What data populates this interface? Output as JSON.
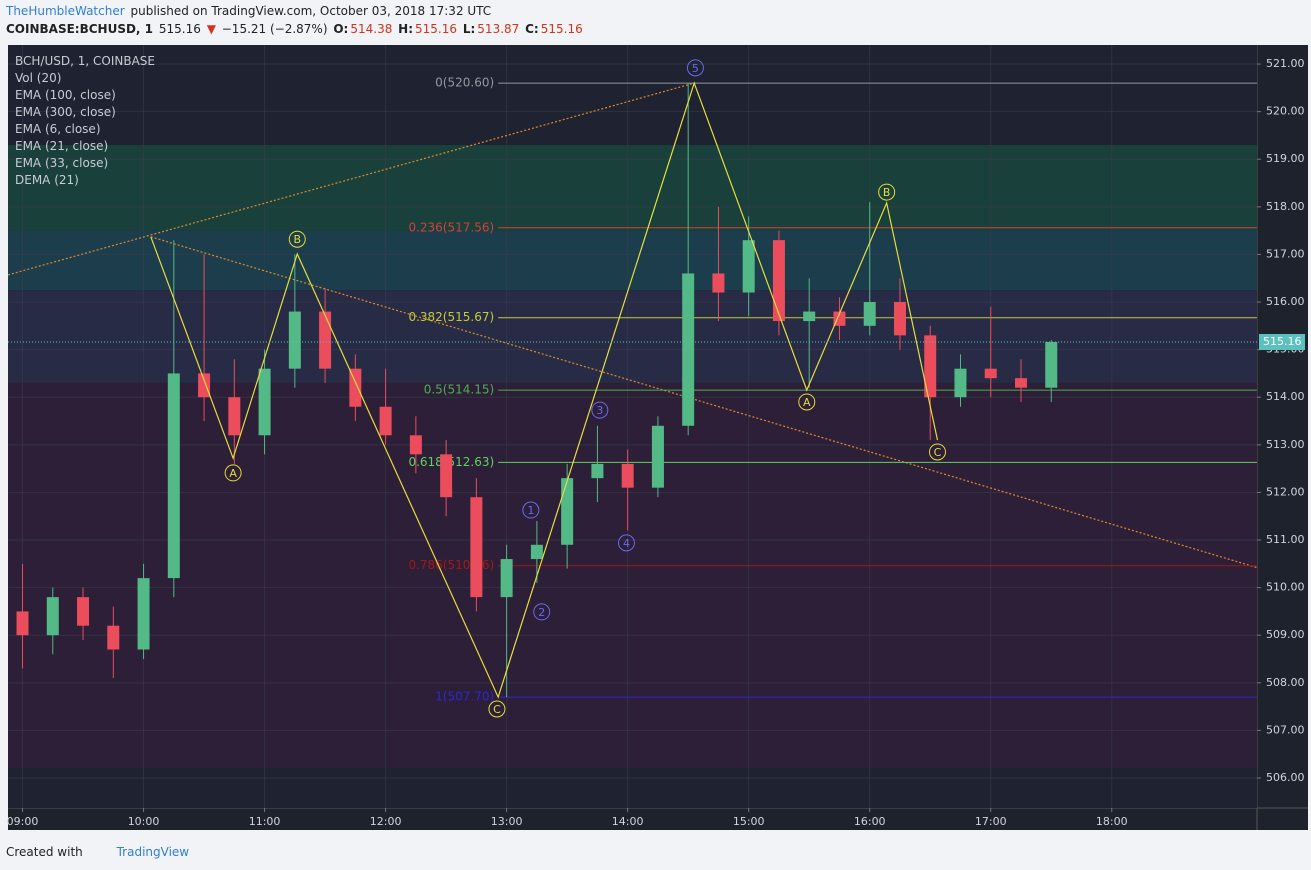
{
  "header": {
    "author": "TheHumbleWatcher",
    "published": "published on TradingView.com, October 03, 2018 17:32 UTC",
    "symbol": "COINBASE:BCHUSD, 1",
    "price": "515.16",
    "arrow": "▼",
    "change": "−15.21 (−2.87%)",
    "o_label": "O:",
    "o": "514.38",
    "h_label": "H:",
    "h": "515.16",
    "l_label": "L:",
    "l": "513.87",
    "c_label": "C:",
    "c": "515.16"
  },
  "legend": [
    "BCH/USD, 1, COINBASE",
    "Vol (20)",
    "EMA (100, close)",
    "EMA (300, close)",
    "EMA (6, close)",
    "EMA (21, close)",
    "EMA (33, close)",
    "DEMA (21)"
  ],
  "footer": {
    "created": "Created with",
    "brand": "TradingView"
  },
  "chart_data": {
    "type": "candlestick",
    "grid": true,
    "xlim": [
      8.88,
      19.2
    ],
    "ylim": [
      505.37,
      521.4
    ],
    "xticks": [
      {
        "value": 9,
        "label": "09:00"
      },
      {
        "value": 10,
        "label": "10:00"
      },
      {
        "value": 11,
        "label": "11:00"
      },
      {
        "value": 12,
        "label": "12:00"
      },
      {
        "value": 13,
        "label": "13:00"
      },
      {
        "value": 14,
        "label": "14:00"
      },
      {
        "value": 15,
        "label": "15:00"
      },
      {
        "value": 16,
        "label": "16:00"
      },
      {
        "value": 17,
        "label": "17:00"
      },
      {
        "value": 18,
        "label": "18:00"
      }
    ],
    "yticks": [
      {
        "value": 506,
        "label": "506.00"
      },
      {
        "value": 507,
        "label": "507.00"
      },
      {
        "value": 508,
        "label": "508.00"
      },
      {
        "value": 509,
        "label": "509.00"
      },
      {
        "value": 510,
        "label": "510.00"
      },
      {
        "value": 511,
        "label": "511.00"
      },
      {
        "value": 512,
        "label": "512.00"
      },
      {
        "value": 513,
        "label": "513.00"
      },
      {
        "value": 514,
        "label": "514.00"
      },
      {
        "value": 515,
        "label": "515.00"
      },
      {
        "value": 516,
        "label": "516.00"
      },
      {
        "value": 517,
        "label": "517.00"
      },
      {
        "value": 518,
        "label": "518.00"
      },
      {
        "value": 519,
        "label": "519.00"
      },
      {
        "value": 520,
        "label": "520.00"
      },
      {
        "value": 521,
        "label": "521.00"
      }
    ],
    "zones": [
      {
        "from": 519.3,
        "to": 521.4,
        "color": "#1f2230"
      },
      {
        "from": 517.5,
        "to": 519.3,
        "color": "#19403b"
      },
      {
        "from": 516.25,
        "to": 517.5,
        "color": "#1c3d4b"
      },
      {
        "from": 514.3,
        "to": 516.25,
        "color": "#272b45"
      },
      {
        "from": 506.2,
        "to": 514.3,
        "color": "#2c1f37"
      },
      {
        "from": 505.37,
        "to": 506.2,
        "color": "#1f2230"
      }
    ],
    "up_color": "#53b987",
    "down_color": "#eb4d5c",
    "x": [
      9.0,
      9.25,
      9.5,
      9.75,
      10.0,
      10.25,
      10.5,
      10.75,
      11.0,
      11.25,
      11.5,
      11.75,
      12.0,
      12.25,
      12.5,
      12.75,
      13.0,
      13.25,
      13.5,
      13.75,
      14.0,
      14.25,
      14.5,
      14.75,
      15.0,
      15.25,
      15.5,
      15.75,
      16.0,
      16.25,
      16.5,
      16.75,
      17.0,
      17.25,
      17.5
    ],
    "open": [
      509.5,
      509.0,
      509.8,
      509.2,
      508.7,
      510.2,
      514.5,
      514.0,
      513.2,
      514.6,
      515.8,
      514.6,
      513.8,
      513.2,
      512.8,
      511.9,
      509.8,
      510.6,
      510.9,
      512.3,
      512.6,
      512.1,
      513.4,
      516.6,
      516.2,
      517.3,
      515.6,
      515.8,
      515.5,
      516.0,
      515.3,
      514.0,
      514.6,
      514.4,
      514.2
    ],
    "high": [
      510.5,
      510.0,
      510.0,
      509.6,
      510.5,
      517.3,
      517.0,
      514.8,
      515.0,
      517.0,
      516.3,
      514.9,
      514.6,
      513.6,
      513.1,
      512.3,
      510.9,
      511.4,
      512.6,
      513.4,
      512.9,
      513.6,
      520.6,
      518.0,
      517.8,
      517.5,
      516.5,
      516.1,
      518.1,
      516.5,
      515.5,
      514.9,
      515.9,
      514.8,
      515.2
    ],
    "low": [
      508.3,
      508.6,
      508.9,
      508.1,
      508.5,
      509.8,
      513.5,
      512.6,
      512.8,
      514.2,
      514.3,
      513.5,
      513.0,
      512.4,
      511.5,
      509.5,
      507.7,
      510.1,
      510.4,
      511.8,
      511.2,
      511.9,
      513.2,
      515.6,
      515.7,
      515.3,
      514.2,
      515.2,
      515.3,
      515.0,
      513.1,
      513.8,
      514.0,
      513.9,
      513.9
    ],
    "close": [
      509.0,
      509.8,
      509.2,
      508.7,
      510.2,
      514.5,
      514.0,
      513.2,
      514.6,
      515.8,
      514.6,
      513.8,
      513.2,
      512.8,
      511.9,
      509.8,
      510.6,
      510.9,
      512.3,
      512.6,
      512.1,
      513.4,
      516.6,
      516.2,
      517.3,
      515.6,
      515.8,
      515.5,
      516.0,
      515.3,
      514.0,
      514.6,
      514.4,
      514.2,
      515.16
    ],
    "last_price": {
      "value": 515.16,
      "label": "515.16",
      "color": "#5bc0be"
    },
    "fib_start": 12.93,
    "fib_levels": [
      {
        "value": 520.6,
        "label": "0(520.60)",
        "color": "#9598a1"
      },
      {
        "value": 517.56,
        "label": "0.236(517.56)",
        "color": "#d0413a"
      },
      {
        "value": 515.67,
        "label": "0.382(515.67)",
        "color": "#c3cc36"
      },
      {
        "value": 514.15,
        "label": "0.5(514.15)",
        "color": "#4caf50"
      },
      {
        "value": 512.63,
        "label": "0.618(512.63)",
        "color": "#5fd35f"
      },
      {
        "value": 510.46,
        "label": "0.786(510.46)",
        "color": "#a01919"
      },
      {
        "value": 507.7,
        "label": "1(507.70)",
        "color": "#2a2ad0"
      }
    ],
    "zigzag": {
      "color": "#e6dc3c",
      "x": [
        10.06,
        10.74,
        11.27,
        12.93,
        14.55,
        15.48,
        16.14,
        16.56
      ],
      "y": [
        517.37,
        512.72,
        517.01,
        507.7,
        520.6,
        514.15,
        518.08,
        513.1
      ]
    },
    "impulse": {
      "color": "#3fbf3f",
      "x": [
        12.93,
        14.55
      ],
      "y": [
        507.7,
        520.6
      ]
    },
    "trendlines": [
      {
        "color": "#e08a2c",
        "x": [
          8.88,
          14.55
        ],
        "y": [
          516.57,
          520.6
        ]
      },
      {
        "color": "#e08a2c",
        "x": [
          10.06,
          19.2
        ],
        "y": [
          517.37,
          510.42
        ]
      }
    ],
    "wave_labels": [
      {
        "text": "A",
        "x": 10.74,
        "y": 512.41,
        "color": "#e6dc3c"
      },
      {
        "text": "B",
        "x": 11.27,
        "y": 517.32,
        "color": "#e6dc3c"
      },
      {
        "text": "C",
        "x": 12.92,
        "y": 507.45,
        "color": "#e6dc3c"
      },
      {
        "text": "1",
        "x": 13.2,
        "y": 511.63,
        "color": "#6a6af0"
      },
      {
        "text": "2",
        "x": 13.29,
        "y": 509.49,
        "color": "#6a6af0"
      },
      {
        "text": "3",
        "x": 13.77,
        "y": 513.73,
        "color": "#6a6af0"
      },
      {
        "text": "4",
        "x": 13.99,
        "y": 510.94,
        "color": "#6a6af0"
      },
      {
        "text": "5",
        "x": 14.56,
        "y": 520.92,
        "color": "#6a6af0"
      },
      {
        "text": "A",
        "x": 15.48,
        "y": 513.9,
        "color": "#e6dc3c"
      },
      {
        "text": "B",
        "x": 16.14,
        "y": 518.31,
        "color": "#e6dc3c"
      },
      {
        "text": "C",
        "x": 16.56,
        "y": 512.85,
        "color": "#e6dc3c"
      }
    ]
  }
}
